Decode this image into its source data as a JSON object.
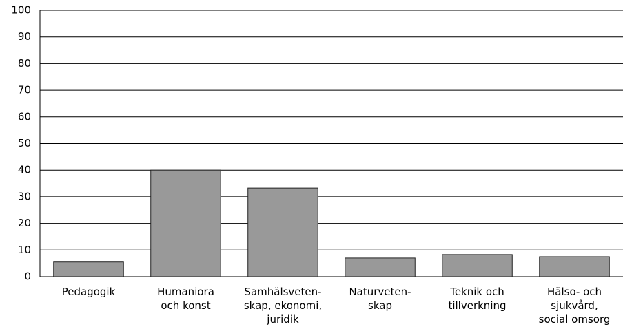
{
  "chart_data": {
    "type": "bar",
    "categories": [
      "Pedagogik",
      "Humaniora\noch konst",
      "Samhälsveten-\nskap, ekonomi,\njuridik",
      "Naturveten-\nskap",
      "Teknik och\ntillverkning",
      "Hälso- och\nsjukvård,\nsocial omsorg"
    ],
    "values": [
      5.5,
      40,
      33.3,
      7,
      8.3,
      7.5
    ],
    "color": "#999999",
    "ylim": [
      0,
      100
    ],
    "yticks": [
      0,
      10,
      20,
      30,
      40,
      50,
      60,
      70,
      80,
      90,
      100
    ],
    "grid": true
  }
}
